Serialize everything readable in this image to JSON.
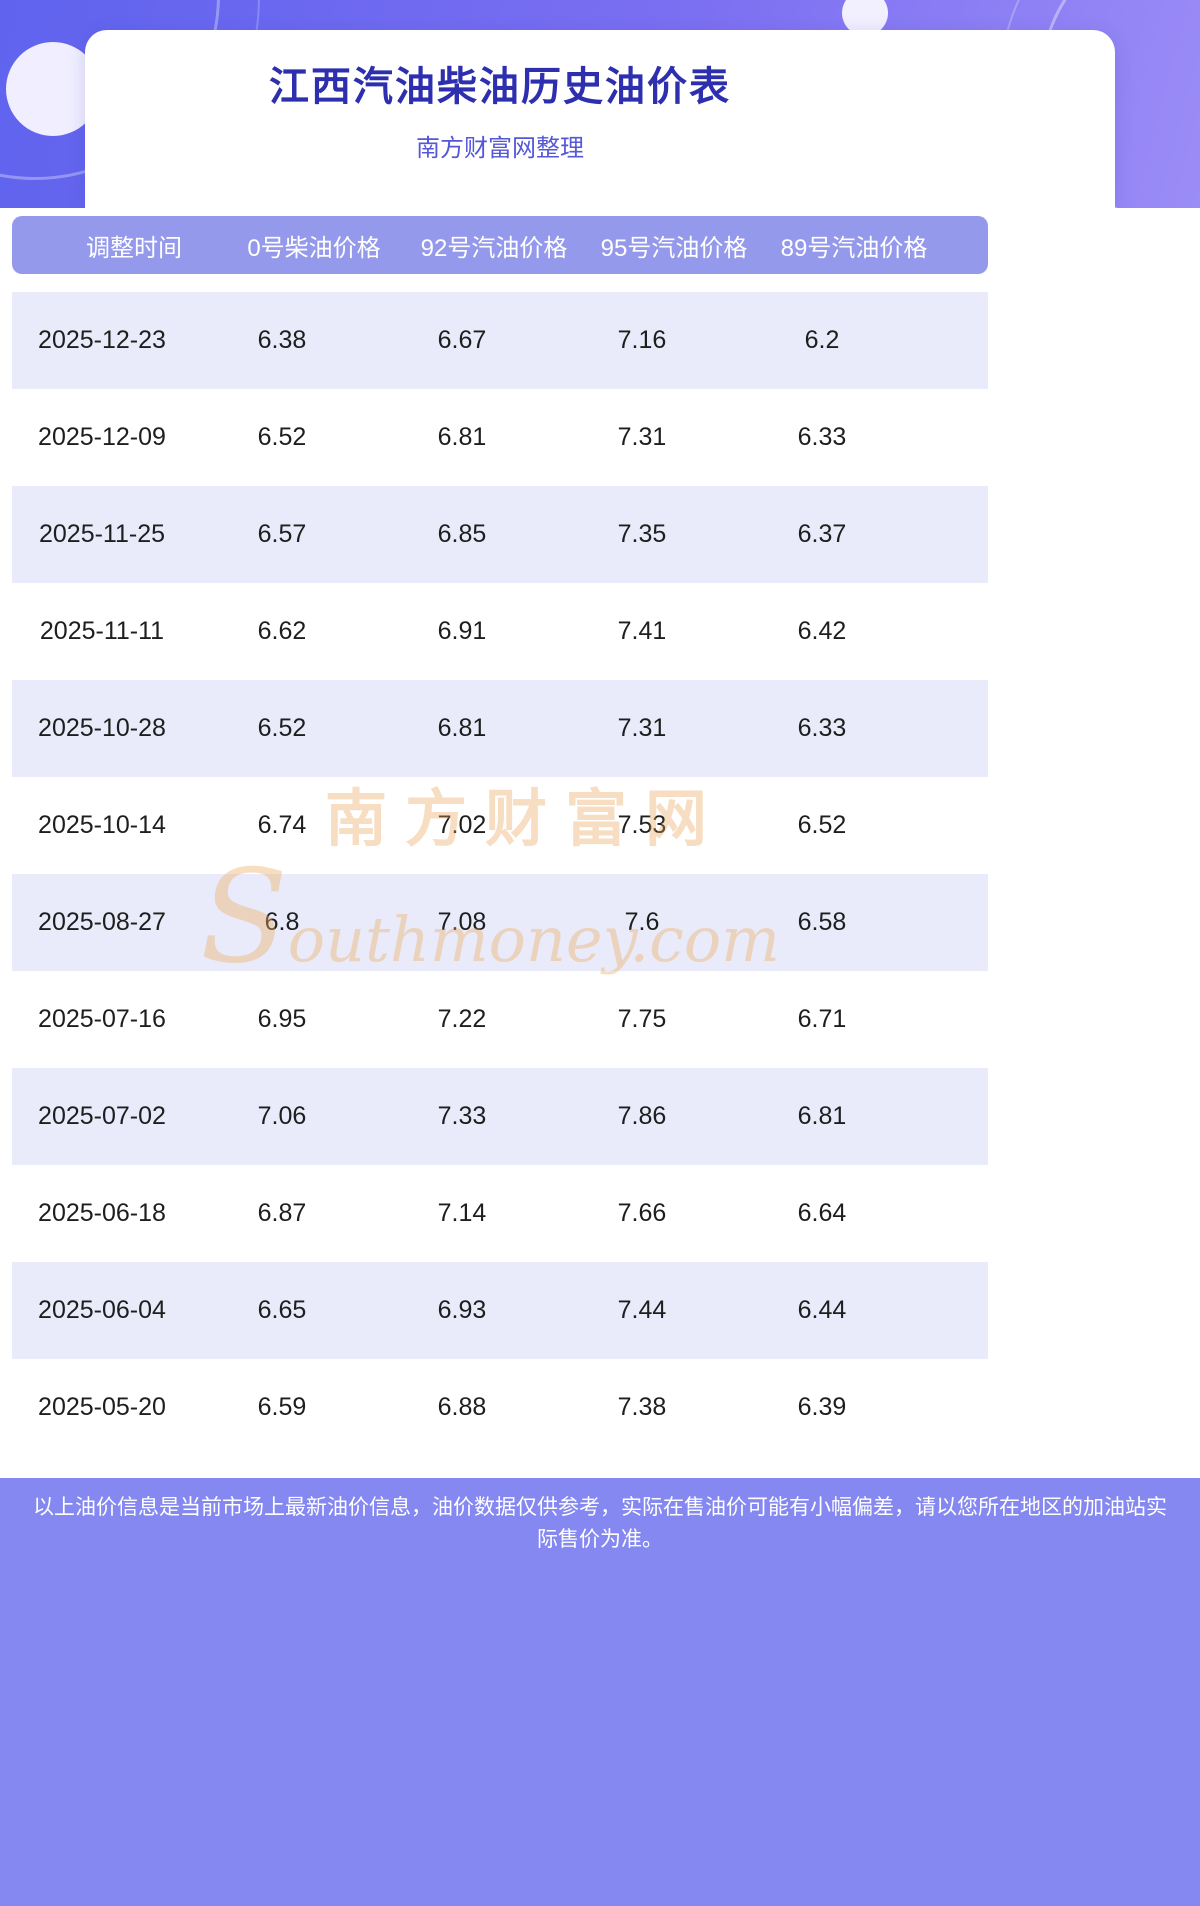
{
  "page": {
    "title": "江西汽油柴油历史油价表",
    "subtitle": "南方财富网整理"
  },
  "watermark": {
    "line1": "南方财富网",
    "line2": "Southmoney.com"
  },
  "table": {
    "columns": [
      "调整时间",
      "0号柴油价格",
      "92号汽油价格",
      "95号汽油价格",
      "89号汽油价格"
    ],
    "rows": [
      [
        "2025-12-23",
        "6.38",
        "6.67",
        "7.16",
        "6.2"
      ],
      [
        "2025-12-09",
        "6.52",
        "6.81",
        "7.31",
        "6.33"
      ],
      [
        "2025-11-25",
        "6.57",
        "6.85",
        "7.35",
        "6.37"
      ],
      [
        "2025-11-11",
        "6.62",
        "6.91",
        "7.41",
        "6.42"
      ],
      [
        "2025-10-28",
        "6.52",
        "6.81",
        "7.31",
        "6.33"
      ],
      [
        "2025-10-14",
        "6.74",
        "7.02",
        "7.53",
        "6.52"
      ],
      [
        "2025-08-27",
        "6.8",
        "7.08",
        "7.6",
        "6.58"
      ],
      [
        "2025-07-16",
        "6.95",
        "7.22",
        "7.75",
        "6.71"
      ],
      [
        "2025-07-02",
        "7.06",
        "7.33",
        "7.86",
        "6.81"
      ],
      [
        "2025-06-18",
        "6.87",
        "7.14",
        "7.66",
        "6.64"
      ],
      [
        "2025-06-04",
        "6.65",
        "6.93",
        "7.44",
        "6.44"
      ],
      [
        "2025-05-20",
        "6.59",
        "6.88",
        "7.38",
        "6.39"
      ]
    ]
  },
  "footer": {
    "text": "以上油价信息是当前市场上最新油价信息，油价数据仅供参考，实际在售油价可能有小幅偏差，请以您所在地区的加油站实际售价为准。"
  },
  "colors": {
    "header_grad_a": "#5f63ee",
    "header_grad_b": "#7b6ff2",
    "header_grad_c": "#9b8cf6",
    "title_color": "#2d2fae",
    "subtitle_color": "#5457d8",
    "table_header_bg": "#9599ec",
    "table_header_text": "#ffffff",
    "row_alt_bg": "#e9ebfa",
    "row_text": "#1e1e1e",
    "footer_bg": "#8488f0",
    "footer_text_color": "#ffffff",
    "watermark_cn_color": "rgba(232,158,80,0.35)",
    "watermark_en_color": "rgba(236,172,98,0.40)"
  }
}
